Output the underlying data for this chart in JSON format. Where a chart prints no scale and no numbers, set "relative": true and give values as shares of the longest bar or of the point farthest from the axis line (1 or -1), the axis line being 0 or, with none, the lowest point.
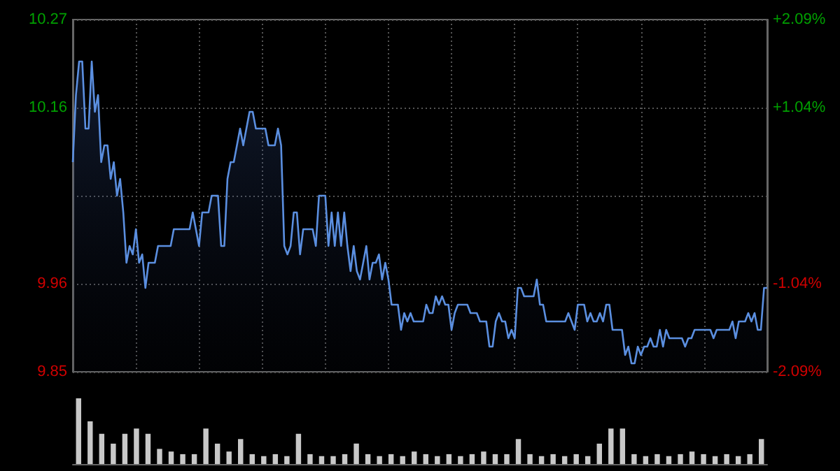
{
  "chart_data": [
    {
      "type": "area",
      "color": "#5b8fe0",
      "line_style": "solid",
      "grid": true,
      "categories": [
        null,
        null,
        null,
        null,
        null,
        null,
        null,
        null,
        null,
        null,
        null,
        null,
        null,
        null,
        null,
        null,
        null,
        null,
        null,
        null,
        null,
        null,
        null,
        null,
        null,
        null,
        null,
        null,
        null,
        null,
        null,
        null,
        null,
        null,
        null,
        null,
        null,
        null,
        null,
        null,
        null,
        null,
        null,
        null,
        null,
        null,
        null,
        null,
        null,
        null,
        null,
        null,
        null,
        null,
        null,
        null,
        null,
        null,
        null,
        null,
        null,
        null,
        null,
        null,
        null,
        null,
        null,
        null,
        null,
        null,
        null,
        null,
        null,
        null,
        null,
        null,
        null,
        null,
        null,
        null,
        null,
        null,
        null,
        null,
        null,
        null,
        null,
        null,
        null,
        null,
        null,
        null,
        null,
        null,
        null,
        null,
        null,
        null,
        null,
        null,
        null,
        null,
        null,
        null,
        null,
        null,
        null,
        null,
        null,
        null,
        null,
        null,
        null,
        null,
        null,
        null,
        null,
        null,
        null,
        null,
        null,
        null,
        null,
        null,
        null,
        null,
        null,
        null,
        null,
        null,
        null,
        null,
        null,
        null,
        null,
        null,
        null,
        null,
        null,
        null,
        null,
        null,
        null,
        null,
        null,
        null,
        null,
        null,
        null,
        null,
        null,
        null,
        null,
        null,
        null,
        null,
        null,
        null,
        null,
        null,
        null,
        null,
        null,
        null,
        null,
        null,
        null,
        null,
        null,
        null,
        null,
        null,
        null,
        null,
        null,
        null,
        null,
        null,
        null,
        null,
        null,
        null,
        null,
        null,
        null,
        null,
        null,
        null,
        null,
        null,
        null,
        null,
        null,
        null,
        null,
        null,
        null,
        null,
        null,
        null,
        null,
        null,
        null,
        null,
        null,
        null,
        null,
        null,
        null,
        null,
        null,
        null,
        null,
        null,
        null,
        null,
        null,
        null,
        null,
        null,
        null
      ],
      "ylim": [
        9.85,
        10.27
      ],
      "yticks": [
        9.85,
        {
          "value": 9.955,
          "label": "9.96"
        },
        {
          "value": 10.06,
          "label": null
        },
        {
          "value": 10.165,
          "label": "10.16"
        },
        10.27
      ],
      "y2lim": [
        -2.09,
        2.09
      ],
      "y2ticks": [
        {
          "value": -2.09,
          "label": "-2.09%"
        },
        {
          "value": -1.045,
          "label": "-1.04%"
        },
        {
          "value": 0,
          "label": null
        },
        {
          "value": 1.045,
          "label": "+1.04%"
        },
        {
          "value": 2.09,
          "label": "+2.09%"
        }
      ],
      "values": [
        10.1,
        10.18,
        10.22,
        10.22,
        10.14,
        10.14,
        10.22,
        10.16,
        10.18,
        10.1,
        10.12,
        10.12,
        10.08,
        10.1,
        10.06,
        10.08,
        10.04,
        9.98,
        10.0,
        9.99,
        10.02,
        9.98,
        9.99,
        9.95,
        9.98,
        9.98,
        9.98,
        10.0,
        10.0,
        10.0,
        10.0,
        10.0,
        10.02,
        10.02,
        10.02,
        10.02,
        10.02,
        10.02,
        10.04,
        10.02,
        10.0,
        10.04,
        10.04,
        10.04,
        10.06,
        10.06,
        10.06,
        10.0,
        10.0,
        10.08,
        10.1,
        10.1,
        10.12,
        10.14,
        10.12,
        10.14,
        10.16,
        10.16,
        10.14,
        10.14,
        10.14,
        10.14,
        10.12,
        10.12,
        10.12,
        10.14,
        10.12,
        10.0,
        9.99,
        10.0,
        10.04,
        10.04,
        9.99,
        10.02,
        10.02,
        10.02,
        10.02,
        10.0,
        10.06,
        10.06,
        10.06,
        10.0,
        10.04,
        10.0,
        10.04,
        10.0,
        10.04,
        10.0,
        9.97,
        10.0,
        9.97,
        9.96,
        9.98,
        10.0,
        9.96,
        9.98,
        9.98,
        9.99,
        9.96,
        9.98,
        9.96,
        9.93,
        9.93,
        9.93,
        9.9,
        9.92,
        9.91,
        9.92,
        9.91,
        9.91,
        9.91,
        9.91,
        9.93,
        9.92,
        9.92,
        9.94,
        9.93,
        9.94,
        9.93,
        9.93,
        9.9,
        9.92,
        9.93,
        9.93,
        9.93,
        9.93,
        9.92,
        9.92,
        9.92,
        9.91,
        9.91,
        9.91,
        9.88,
        9.88,
        9.91,
        9.92,
        9.91,
        9.91,
        9.89,
        9.9,
        9.89,
        9.95,
        9.95,
        9.94,
        9.94,
        9.94,
        9.94,
        9.96,
        9.93,
        9.93,
        9.91,
        9.91,
        9.91,
        9.91,
        9.91,
        9.91,
        9.91,
        9.92,
        9.91,
        9.9,
        9.93,
        9.93,
        9.93,
        9.91,
        9.92,
        9.91,
        9.91,
        9.92,
        9.91,
        9.93,
        9.93,
        9.9,
        9.9,
        9.9,
        9.9,
        9.87,
        9.88,
        9.86,
        9.86,
        9.88,
        9.87,
        9.88,
        9.88,
        9.89,
        9.88,
        9.88,
        9.9,
        9.88,
        9.9,
        9.89,
        9.89,
        9.89,
        9.89,
        9.89,
        9.88,
        9.89,
        9.89,
        9.9,
        9.9,
        9.9,
        9.9,
        9.9,
        9.9,
        9.89,
        9.9,
        9.9,
        9.9,
        9.9,
        9.9,
        9.91,
        9.89,
        9.91,
        9.91,
        9.91,
        9.92,
        9.91,
        9.92,
        9.9,
        9.9,
        9.95,
        9.95
      ]
    },
    {
      "type": "bar",
      "relative": true,
      "color": "#c8c8c8",
      "categories": [
        null,
        null,
        null,
        null,
        null,
        null,
        null,
        null,
        null,
        null,
        null,
        null,
        null,
        null,
        null,
        null,
        null,
        null,
        null,
        null,
        null,
        null,
        null,
        null,
        null,
        null,
        null,
        null,
        null,
        null,
        null,
        null,
        null,
        null,
        null,
        null,
        null,
        null,
        null,
        null,
        null,
        null,
        null,
        null,
        null,
        null,
        null,
        null,
        null,
        null,
        null,
        null,
        null,
        null,
        null,
        null,
        null,
        null,
        null,
        null
      ],
      "values": [
        1,
        0.65,
        0.46,
        0.31,
        0.46,
        0.54,
        0.46,
        0.23,
        0.19,
        0.15,
        0.15,
        0.54,
        0.31,
        0.19,
        0.38,
        0.15,
        0.12,
        0.15,
        0.12,
        0.46,
        0.15,
        0.12,
        0.12,
        0.15,
        0.31,
        0.15,
        0.12,
        0.15,
        0.12,
        0.19,
        0.15,
        0.12,
        0.15,
        0.12,
        0.15,
        0.19,
        0.15,
        0.15,
        0.38,
        0.15,
        0.12,
        0.15,
        0.12,
        0.15,
        0.12,
        0.31,
        0.54,
        0.54,
        0.15,
        0.12,
        0.15,
        0.12,
        0.15,
        0.19,
        0.15,
        0.12,
        0.15,
        0.12,
        0.15,
        0.38
      ]
    }
  ]
}
